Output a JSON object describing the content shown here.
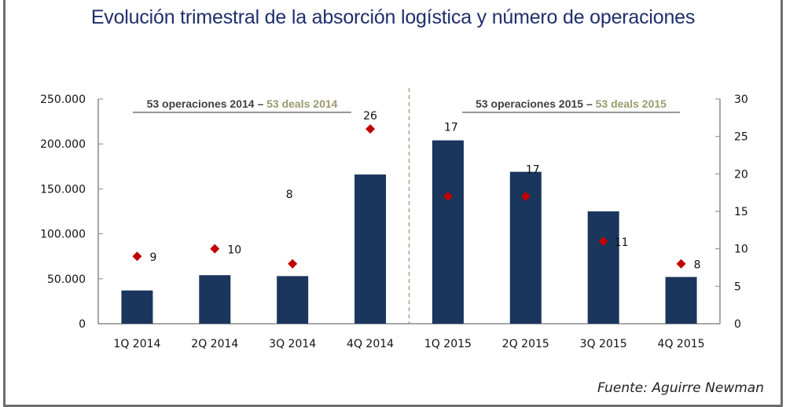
{
  "title": "Evolución trimestral de la absorción logística y número de operaciones",
  "source": "Fuente: Aguirre Newman",
  "chart_data": {
    "type": "bar",
    "title": "Evolución trimestral de la absorción logística y número de operaciones",
    "categories": [
      "1Q 2014",
      "2Q 2014",
      "3Q 2014",
      "4Q 2014",
      "1Q 2015",
      "2Q 2015",
      "3Q 2015",
      "4Q 2015"
    ],
    "series": [
      {
        "name": "Absorción logística",
        "type": "bar",
        "axis": "left",
        "color": "#1b365d",
        "values": [
          37000,
          54000,
          53000,
          166000,
          204000,
          169000,
          125000,
          52000
        ]
      },
      {
        "name": "Número de operaciones",
        "type": "scatter",
        "axis": "right",
        "color": "#c00000",
        "marker": "diamond",
        "values": [
          9,
          10,
          8,
          26,
          17,
          17,
          11,
          8
        ],
        "labels": [
          "9",
          "10",
          "8",
          "26",
          "17",
          "17",
          "11",
          "8"
        ],
        "label_positions": [
          "right",
          "right",
          "detached-above",
          "above",
          "above-bar",
          "above-bar",
          "right",
          "right"
        ]
      }
    ],
    "y_left": {
      "range": [
        0,
        250000
      ],
      "ticks": [
        "0",
        "50.000",
        "100.000",
        "150.000",
        "200.000",
        "250.000"
      ]
    },
    "y_right": {
      "range": [
        0,
        30
      ],
      "ticks": [
        "0",
        "5",
        "10",
        "15",
        "20",
        "25",
        "30"
      ]
    },
    "grid": false,
    "annotations": [
      {
        "main": "53 operaciones 2014 – ",
        "highlight": "53 deals 2014",
        "span": "2014"
      },
      {
        "main": "53 operaciones 2015 – ",
        "highlight": "53 deals 2015",
        "span": "2015"
      }
    ],
    "divider": "between 4Q 2014 and 1Q 2015",
    "highlight_color": "#9c9a6e",
    "annotation_color": "#404040"
  }
}
